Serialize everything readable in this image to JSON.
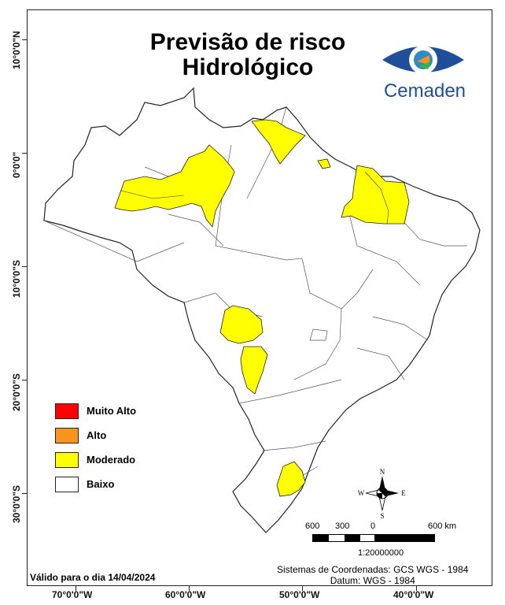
{
  "title_line1": "Previsão de risco",
  "title_line2": "Hidrológico",
  "logo_text": "Cemaden",
  "y_ticks": [
    "10°0'0\"N",
    "0°0'0\"",
    "10°0'0\"S",
    "20°0'0\"S",
    "30°0'0\"S"
  ],
  "x_ticks": [
    "70°0'0\"W",
    "60°0'0\"W",
    "50°0'0\"W",
    "40°0'0\"W"
  ],
  "legend": [
    {
      "label": "Muito Alto",
      "color": "#ff0000"
    },
    {
      "label": "Alto",
      "color": "#f7941d"
    },
    {
      "label": "Moderado",
      "color": "#ffff00"
    },
    {
      "label": "Baixo",
      "color": "#ffffff"
    }
  ],
  "compass": {
    "n": "N",
    "s": "S",
    "e": "E",
    "w": "W"
  },
  "scale": {
    "labels": [
      "600",
      "300",
      "0",
      "600 km"
    ],
    "ratio": "1:20000000"
  },
  "valid_text": "Válido para o dia 14/04/2024",
  "coord_system": "Sistemas de Coordenadas: GCS WGS - 1984",
  "datum": "Datum: WGS - 1984",
  "colors": {
    "moderado": "#ffff00",
    "baixo": "#ffffff",
    "border": "#222222",
    "logo_blue": "#1f4f9a"
  }
}
